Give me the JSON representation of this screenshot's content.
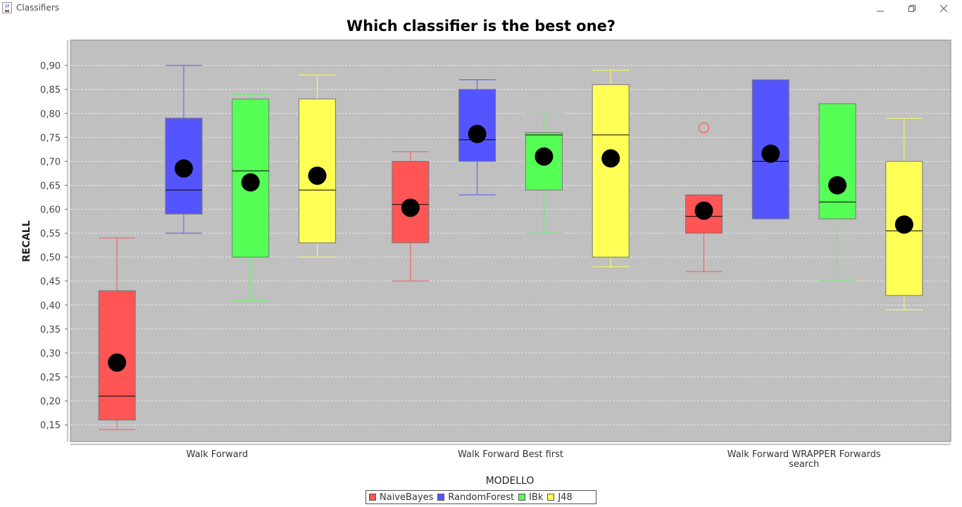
{
  "window": {
    "title": "Classifiers",
    "icon": "java-icon",
    "controls": [
      "minimize-icon",
      "restore-icon",
      "close-icon"
    ]
  },
  "chart_data": {
    "type": "boxplot",
    "title": "Which classifier is the best one?",
    "xlabel": "MODELLO",
    "ylabel": "RECALL",
    "ylim": [
      0.115,
      0.953
    ],
    "yticks": [
      "0,15",
      "0,20",
      "0,25",
      "0,30",
      "0,35",
      "0,40",
      "0,45",
      "0,50",
      "0,55",
      "0,60",
      "0,65",
      "0,70",
      "0,75",
      "0,80",
      "0,85",
      "0,90"
    ],
    "grid": true,
    "legend_position": "bottom",
    "plot_background": "#c0c0c0",
    "categories": [
      {
        "label": [
          "Walk Forward"
        ]
      },
      {
        "label": [
          "Walk Forward  Best first"
        ]
      },
      {
        "label": [
          "Walk Forward  WRAPPER Forwards",
          "search"
        ]
      }
    ],
    "series": [
      {
        "name": "NaiveBayes",
        "color": "#ff5555",
        "boxes": [
          {
            "min": 0.14,
            "q1": 0.16,
            "median": 0.21,
            "q3": 0.43,
            "max": 0.54,
            "mean": 0.28,
            "outliers": []
          },
          {
            "min": 0.45,
            "q1": 0.53,
            "median": 0.61,
            "q3": 0.7,
            "max": 0.72,
            "mean": 0.603,
            "outliers": []
          },
          {
            "min": 0.47,
            "q1": 0.55,
            "median": 0.585,
            "q3": 0.63,
            "max": 0.63,
            "mean": 0.597,
            "outliers": [
              0.77
            ]
          }
        ]
      },
      {
        "name": "RandomForest",
        "color": "#5555ff",
        "boxes": [
          {
            "min": 0.55,
            "q1": 0.59,
            "median": 0.64,
            "q3": 0.79,
            "max": 0.9,
            "mean": 0.685,
            "outliers": []
          },
          {
            "min": 0.63,
            "q1": 0.7,
            "median": 0.745,
            "q3": 0.85,
            "max": 0.87,
            "mean": 0.757,
            "outliers": []
          },
          {
            "min": 0.58,
            "q1": 0.58,
            "median": 0.7,
            "q3": 0.87,
            "max": 0.87,
            "mean": 0.716,
            "outliers": []
          }
        ]
      },
      {
        "name": "IBk",
        "color": "#55ff55",
        "boxes": [
          {
            "min": 0.41,
            "q1": 0.5,
            "median": 0.68,
            "q3": 0.83,
            "max": 0.84,
            "mean": 0.656,
            "outliers": []
          },
          {
            "min": 0.55,
            "q1": 0.64,
            "median": 0.755,
            "q3": 0.76,
            "max": 0.8,
            "mean": 0.71,
            "outliers": []
          },
          {
            "min": 0.45,
            "q1": 0.58,
            "median": 0.615,
            "q3": 0.82,
            "max": 0.82,
            "mean": 0.65,
            "outliers": []
          }
        ]
      },
      {
        "name": "J48",
        "color": "#ffff55",
        "boxes": [
          {
            "min": 0.5,
            "q1": 0.53,
            "median": 0.64,
            "q3": 0.83,
            "max": 0.88,
            "mean": 0.67,
            "outliers": []
          },
          {
            "min": 0.48,
            "q1": 0.5,
            "median": 0.755,
            "q3": 0.86,
            "max": 0.89,
            "mean": 0.706,
            "outliers": []
          },
          {
            "min": 0.39,
            "q1": 0.42,
            "median": 0.555,
            "q3": 0.7,
            "max": 0.79,
            "mean": 0.568,
            "outliers": []
          }
        ]
      }
    ]
  }
}
